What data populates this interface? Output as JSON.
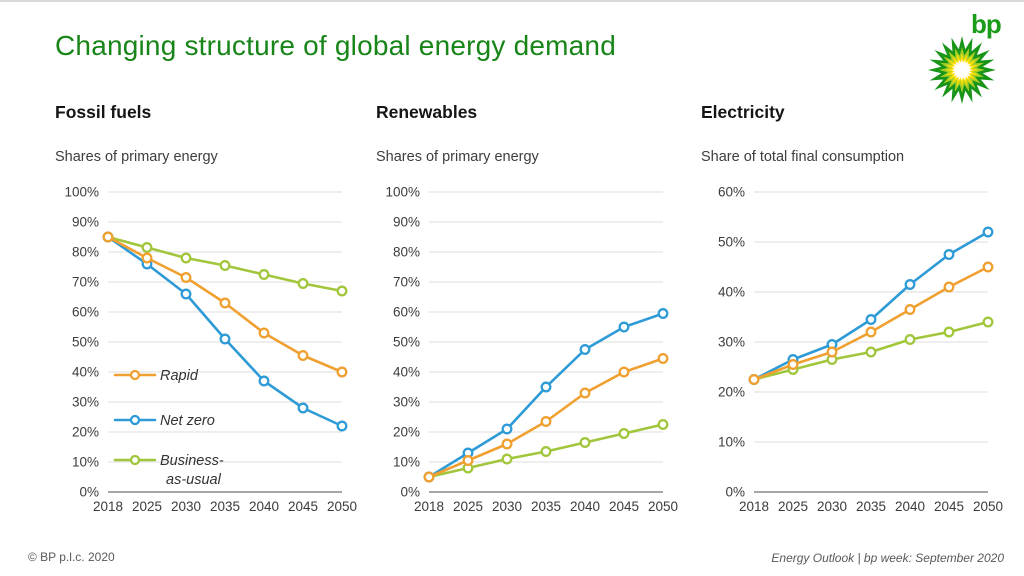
{
  "slide": {
    "title": "Changing structure of global energy demand",
    "logo_text": "bp",
    "footer_left": "© BP p.l.c. 2020",
    "footer_right": "Energy Outlook  |  bp week: September 2020"
  },
  "colors": {
    "title_green": "#178517",
    "bp_logo_green": "#1a9c1a",
    "helios_green": "#189418",
    "helios_yellow_green": "#a8cf26",
    "helios_yellow": "#ffdd00",
    "gridline": "#dcdcdc",
    "axis": "#8a8a8a",
    "rapid_orange": "#f0a030",
    "netzero_blue": "#2e9bd6",
    "bau_green": "#a1c63c"
  },
  "chart_data": [
    {
      "type": "line",
      "title": "Fossil fuels",
      "subtitle": "Shares of primary energy",
      "categories": [
        "2018",
        "2025",
        "2030",
        "2035",
        "2040",
        "2045",
        "2050"
      ],
      "ylim": [
        0,
        100
      ],
      "ytick_step": 10,
      "ytick_suffix": "%",
      "grid": true,
      "legend": {
        "show": true,
        "position": "inside-left"
      },
      "series": [
        {
          "name": "Rapid",
          "legend_lines": [
            "Rapid"
          ],
          "color": "#f0a030",
          "values": [
            85,
            78,
            71.5,
            63,
            53,
            45.5,
            40
          ]
        },
        {
          "name": "Net zero",
          "legend_lines": [
            "Net zero"
          ],
          "color": "#2e9bd6",
          "values": [
            85,
            76,
            66,
            51,
            37,
            28,
            22
          ]
        },
        {
          "name": "Business-as-usual",
          "legend_lines": [
            "Business-",
            "as-usual"
          ],
          "color": "#a1c63c",
          "values": [
            85,
            81.5,
            78,
            75.5,
            72.5,
            69.5,
            67
          ]
        }
      ]
    },
    {
      "type": "line",
      "title": "Renewables",
      "subtitle": "Shares of primary energy",
      "categories": [
        "2018",
        "2025",
        "2030",
        "2035",
        "2040",
        "2045",
        "2050"
      ],
      "ylim": [
        0,
        100
      ],
      "ytick_step": 10,
      "ytick_suffix": "%",
      "grid": true,
      "legend": {
        "show": false
      },
      "series": [
        {
          "name": "Rapid",
          "color": "#f0a030",
          "values": [
            5,
            10.5,
            16,
            23.5,
            33,
            40,
            44.5
          ]
        },
        {
          "name": "Net zero",
          "color": "#2e9bd6",
          "values": [
            5,
            13,
            21,
            35,
            47.5,
            55,
            59.5
          ]
        },
        {
          "name": "Business-as-usual",
          "color": "#a1c63c",
          "values": [
            5,
            8,
            11,
            13.5,
            16.5,
            19.5,
            22.5
          ]
        }
      ]
    },
    {
      "type": "line",
      "title": "Electricity",
      "subtitle": "Share of total final consumption",
      "categories": [
        "2018",
        "2025",
        "2030",
        "2035",
        "2040",
        "2045",
        "2050"
      ],
      "ylim": [
        0,
        60
      ],
      "ytick_step": 10,
      "ytick_suffix": "%",
      "grid": true,
      "legend": {
        "show": false
      },
      "series": [
        {
          "name": "Rapid",
          "color": "#f0a030",
          "values": [
            22.5,
            25.5,
            28,
            32,
            36.5,
            41,
            45
          ]
        },
        {
          "name": "Net zero",
          "color": "#2e9bd6",
          "values": [
            22.5,
            26.5,
            29.5,
            34.5,
            41.5,
            47.5,
            52
          ]
        },
        {
          "name": "Business-as-usual",
          "color": "#a1c63c",
          "values": [
            22.5,
            24.5,
            26.5,
            28,
            30.5,
            32,
            34
          ]
        }
      ]
    }
  ]
}
